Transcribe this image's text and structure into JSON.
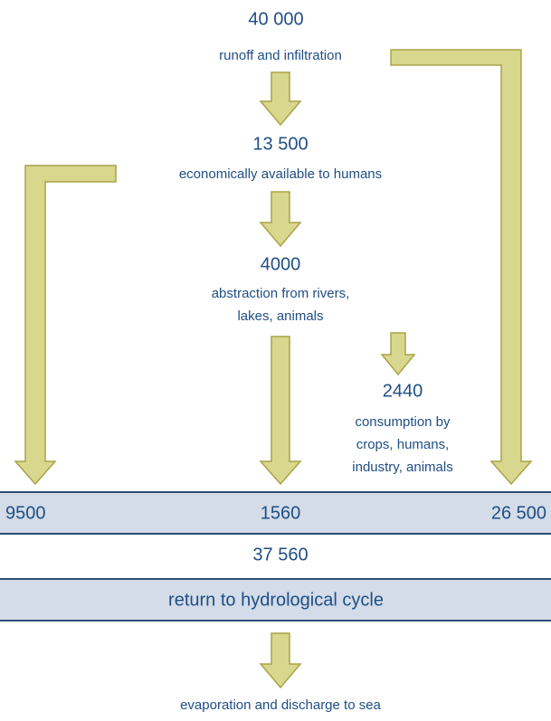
{
  "nodes": [
    {
      "value": "40 000",
      "label": [
        "runoff and infiltration"
      ]
    },
    {
      "value": "13 500",
      "label": [
        "economically available to humans"
      ]
    },
    {
      "value": "4000",
      "label": [
        "abstraction from rivers,",
        "lakes, animals"
      ]
    },
    {
      "value": "2440",
      "label": [
        "consumption by",
        "crops, humans,",
        "industry, animals"
      ]
    }
  ],
  "return_band": {
    "left": "9500",
    "middle": "1560",
    "right": "26 500"
  },
  "total": "37 560",
  "cycle_band": "return to hydrological cycle",
  "outflow": "evaporation and discharge to sea"
}
